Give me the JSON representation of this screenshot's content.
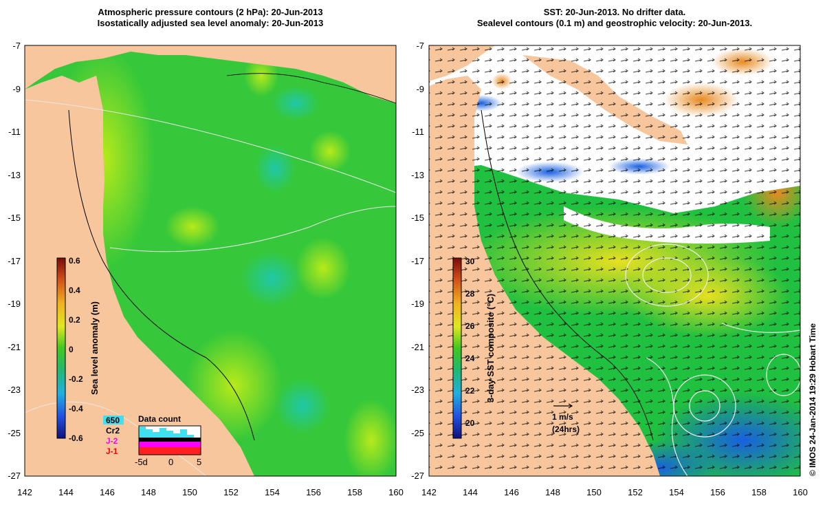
{
  "left_panel": {
    "title_line1": "Atmospheric pressure contours (2 hPa): 20-Jun-2013",
    "title_line2": "Isostatically adjusted sea level anomaly: 20-Jun-2013",
    "colorbar": {
      "label": "Sea level anomaly (m)",
      "ticks": [
        "0.6",
        "0.4",
        "0.2",
        "0",
        "-0.2",
        "-0.4",
        "-0.6"
      ]
    },
    "data_count": {
      "title": "Data count",
      "satellites": [
        {
          "name": "650",
          "color": "#40e0f0"
        },
        {
          "name": "Cr2",
          "color": "#000000"
        },
        {
          "name": "J-2",
          "color": "#ff00ff"
        },
        {
          "name": "J-1",
          "color": "#ff0000"
        }
      ],
      "x_labels": [
        "-5d",
        "0",
        "5"
      ]
    }
  },
  "right_panel": {
    "title_line1": "SST: 20-Jun-2013. No drifter data.",
    "title_line2": "Sealevel contours (0.1 m) and geostrophic velocity: 20-Jun-2013.",
    "colorbar": {
      "label": "3-day SST composite (°C)",
      "ticks": [
        "30",
        "28",
        "26",
        "24",
        "22",
        "20"
      ]
    },
    "velocity_scale": {
      "label": "1 m/s",
      "sublabel": "(24hrs)"
    },
    "credit": "© IMOS 24-Jan-2014 19:29 Hobart Time"
  },
  "axes": {
    "lat_labels": [
      "-7",
      "-9",
      "-11",
      "-13",
      "-15",
      "-17",
      "-19",
      "-21",
      "-23",
      "-25",
      "-27"
    ],
    "lon_labels": [
      "142",
      "144",
      "146",
      "148",
      "150",
      "152",
      "154",
      "156",
      "158",
      "160"
    ]
  },
  "colors": {
    "land": "#f8c69c",
    "sla_green": "#36c83a",
    "sla_yellowgreen": "#a6e61c",
    "sla_cyan": "#22c8a0",
    "sst_white": "#ffffff",
    "sst_green": "#20c040",
    "sst_yellow": "#e8e020",
    "sst_blue": "#2080f0",
    "sst_orange": "#e08020"
  }
}
